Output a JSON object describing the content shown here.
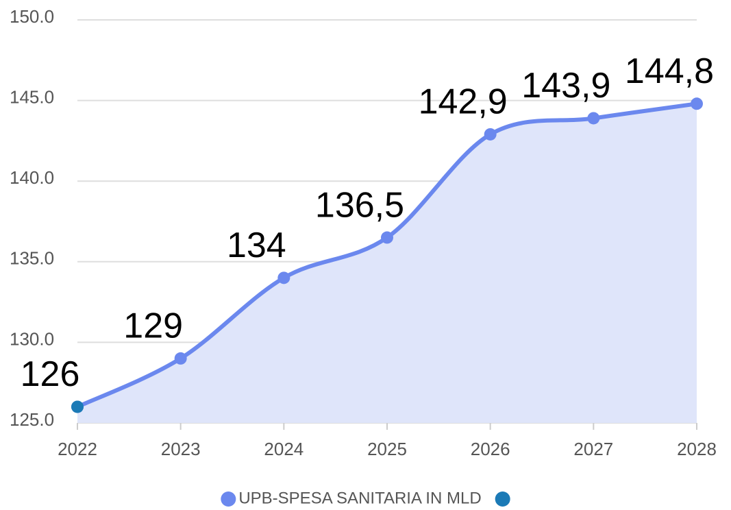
{
  "chart_data": {
    "type": "area",
    "categories": [
      "2022",
      "2023",
      "2024",
      "2025",
      "2026",
      "2027",
      "2028"
    ],
    "series": [
      {
        "name": "UPB-SPESA SANITARIA IN MLD",
        "color": "#6b88ee",
        "area_color": "#dfe5fa",
        "values": [
          126,
          129,
          134,
          136.5,
          142.9,
          143.9,
          144.8
        ],
        "value_labels": [
          "126",
          "129",
          "134",
          "136,5",
          "142,9",
          "143,9",
          "144,8"
        ]
      },
      {
        "name": null,
        "color": "#1b7ab6",
        "values": [
          126,
          null,
          null,
          null,
          null,
          null,
          null
        ]
      }
    ],
    "ylim": [
      125,
      150
    ],
    "yticks": [
      {
        "value": 125,
        "label": "125.0"
      },
      {
        "value": 130,
        "label": "130.0"
      },
      {
        "value": 135,
        "label": "135.0"
      },
      {
        "value": 140,
        "label": "140.0"
      },
      {
        "value": 145,
        "label": "145.0"
      },
      {
        "value": 150,
        "label": "150.0"
      }
    ],
    "grid": true,
    "legend": "bottom"
  }
}
